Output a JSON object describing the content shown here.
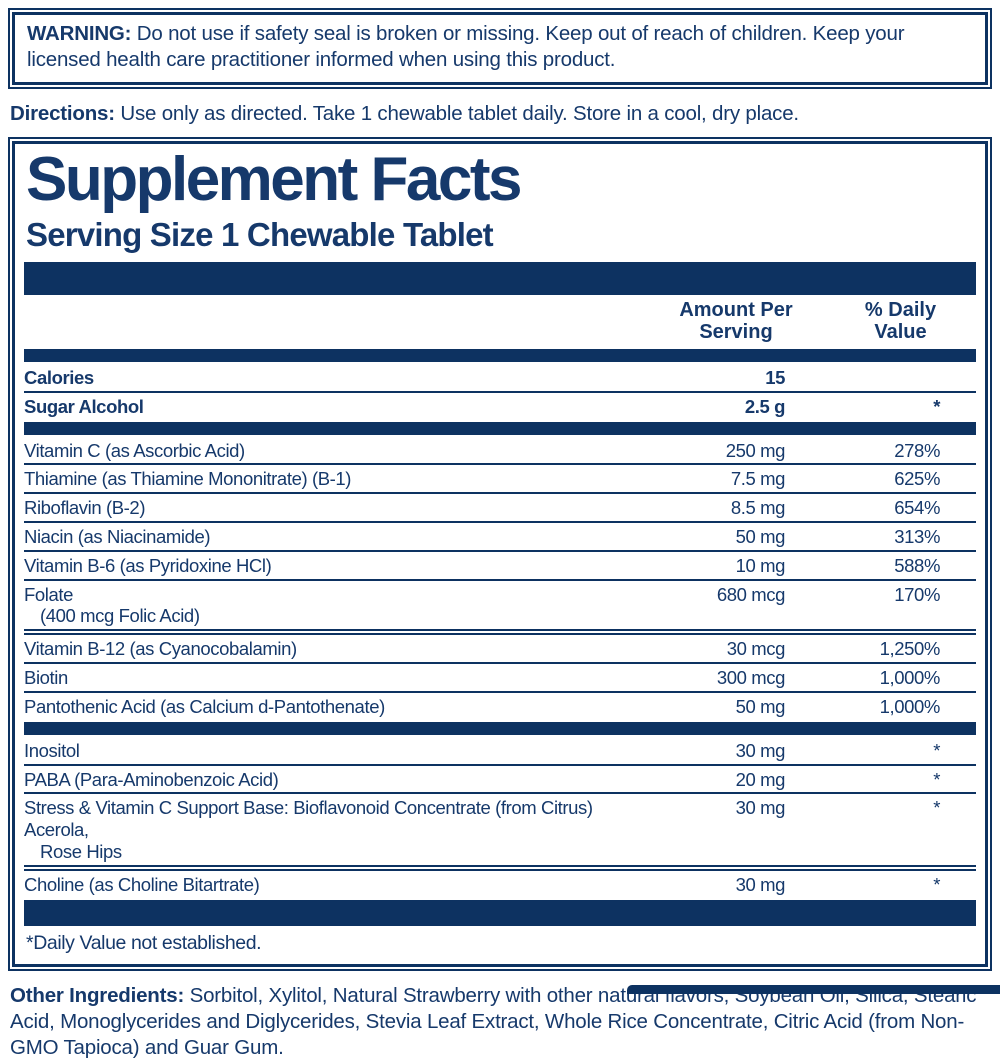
{
  "colors": {
    "navy_bar": "#0d3261",
    "text_navy": "#16396b"
  },
  "warning": {
    "label": "WARNING:",
    "text": " Do not use if safety seal is broken or missing. Keep out of reach of children. Keep your licensed health care practitioner informed when using this product."
  },
  "directions": {
    "label": "Directions:",
    "text": " Use only as directed. Take 1 chewable tablet daily. Store in a cool, dry place."
  },
  "supplement_panel": {
    "title": "Supplement Facts",
    "serving_size": "Serving Size 1 Chewable Tablet",
    "columns": {
      "amount_header": "Amount Per\nServing",
      "daily_value_header": "% Daily\nValue"
    },
    "sections": [
      {
        "type": "rows",
        "rows": [
          {
            "name": "Calories",
            "amount": "15",
            "dv": "",
            "bold": true
          },
          {
            "name": "Sugar Alcohol",
            "amount": "2.5 g",
            "dv": "*",
            "bold": true
          }
        ]
      },
      {
        "type": "bar",
        "style": "thin"
      },
      {
        "type": "rows",
        "rows": [
          {
            "name": "Vitamin C (as Ascorbic Acid)",
            "amount": "250 mg",
            "dv": "278%"
          },
          {
            "name": "Thiamine (as Thiamine Mononitrate) (B-1)",
            "amount": "7.5 mg",
            "dv": "625%"
          },
          {
            "name": "Riboflavin (B-2)",
            "amount": "8.5 mg",
            "dv": "654%"
          },
          {
            "name": "Niacin (as Niacinamide)",
            "amount": "50 mg",
            "dv": "313%"
          },
          {
            "name": "Vitamin B-6 (as Pyridoxine HCl)",
            "amount": "10 mg",
            "dv": "588%"
          },
          {
            "name": "Folate",
            "name_line2": "(400 mcg Folic Acid)",
            "amount": "680 mcg",
            "dv": "170%",
            "separator": "double"
          },
          {
            "name": "Vitamin B-12 (as Cyanocobalamin)",
            "amount": "30 mcg",
            "dv": "1,250%"
          },
          {
            "name": "Biotin",
            "amount": "300 mcg",
            "dv": "1,000%"
          },
          {
            "name": "Pantothenic Acid (as Calcium d-Pantothenate)",
            "amount": "50 mg",
            "dv": "1,000%"
          }
        ]
      },
      {
        "type": "bar",
        "style": "thin"
      },
      {
        "type": "rows",
        "rows": [
          {
            "name": "Inositol",
            "amount": "30 mg",
            "dv": "*"
          },
          {
            "name": "PABA (Para-Aminobenzoic Acid)",
            "amount": "20 mg",
            "dv": "*"
          },
          {
            "name": "Stress & Vitamin C Support Base: Bioflavonoid Concentrate (from Citrus) Acerola,",
            "name_line2": "Rose Hips",
            "amount": "30 mg",
            "dv": "*",
            "separator": "double"
          },
          {
            "name": "Choline (as Choline Bitartrate)",
            "amount": "30 mg",
            "dv": "*"
          }
        ]
      },
      {
        "type": "bar",
        "style": "thick"
      }
    ],
    "footnote": "*Daily Value not established."
  },
  "other_ingredients": {
    "label": "Other Ingredients:",
    "text": " Sorbitol, Xylitol, Natural Strawberry with other natural flavors, Soybean Oil, Silica, Stearic Acid, Monoglycerides and Diglycerides, Stevia Leaf Extract, Whole Rice Concentrate, Citric Acid (from Non-GMO Tapioca) and Guar Gum."
  }
}
